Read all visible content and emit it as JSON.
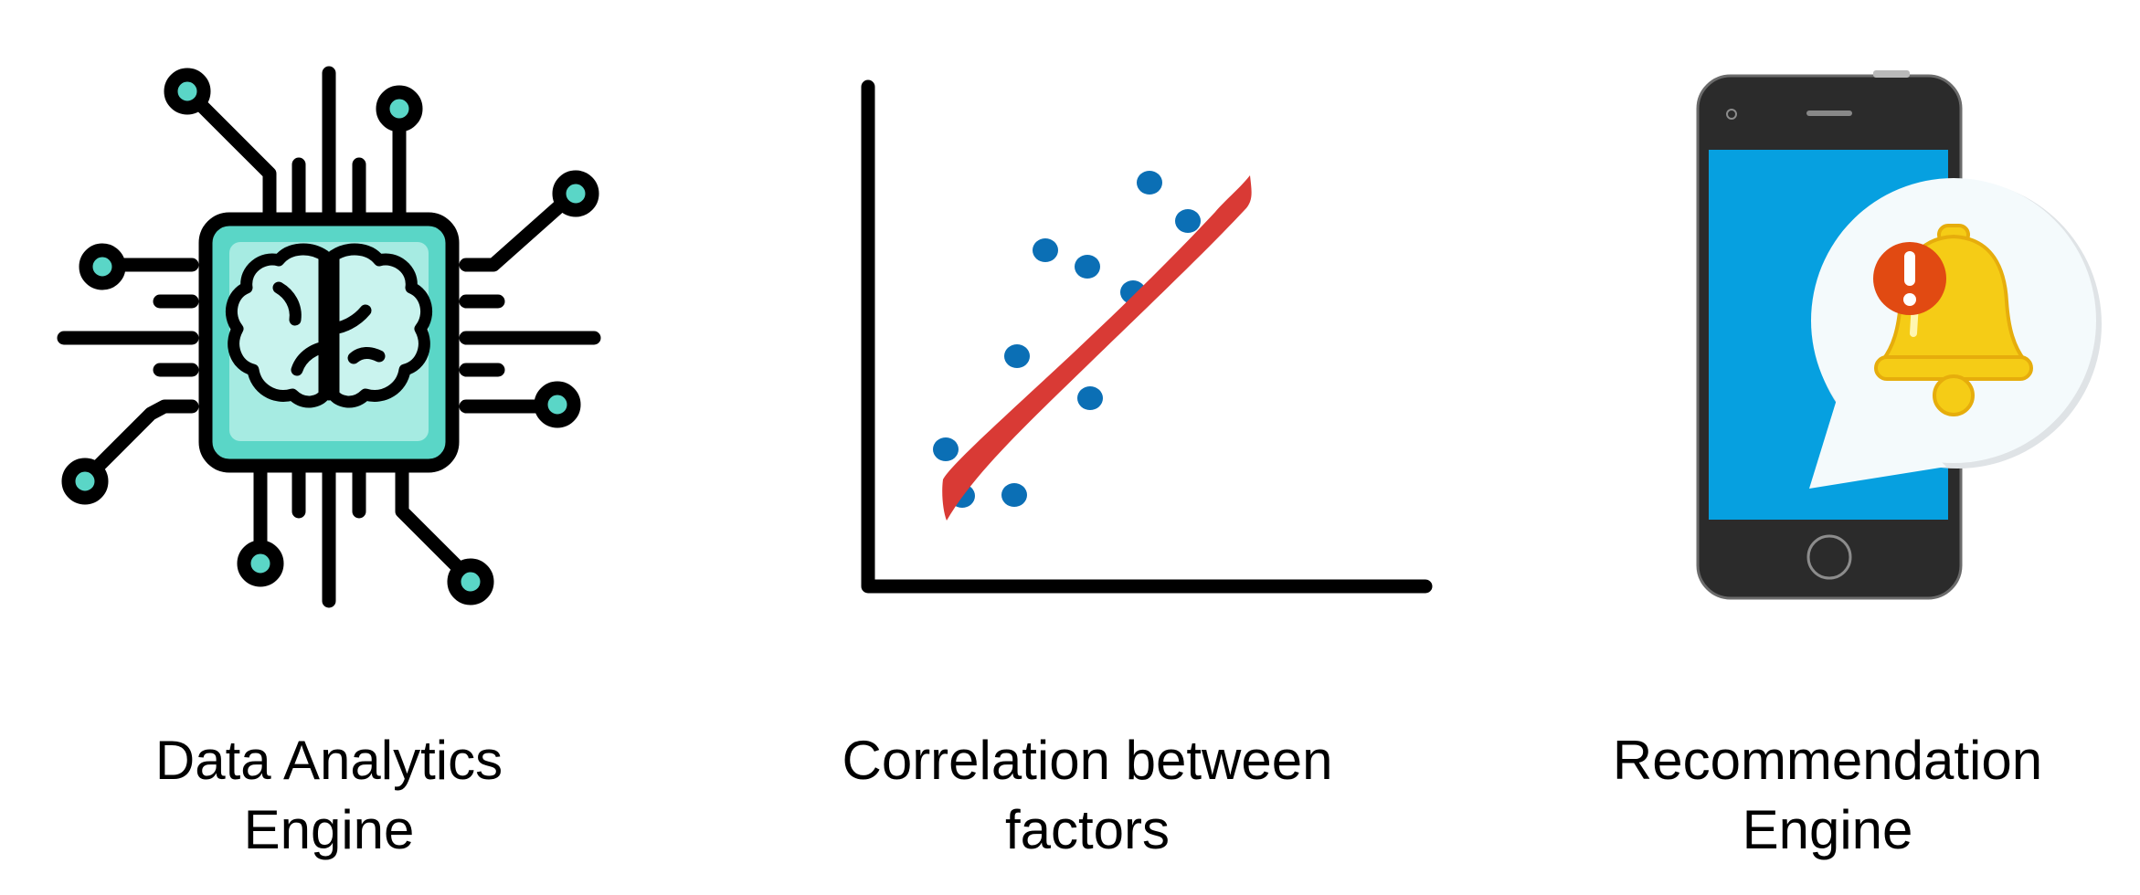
{
  "colors": {
    "stroke": "#000000",
    "teal": "#5ad6c7",
    "teal_light": "#a6ebe2",
    "brain_fill": "#c9f3ee",
    "trend_line": "#d93a35",
    "scatter_point": "#0b6fb5",
    "phone_body": "#2b2b2b",
    "phone_screen": "#06a0e0",
    "bubble": "#f4fafc",
    "bell": "#f5cc16",
    "alert": "#e14a12"
  },
  "icons": {
    "analytics": "brain-chip-icon",
    "correlation": "scatter-trend-icon",
    "recommendation": "phone-notification-bell-icon"
  },
  "panels": {
    "analytics": {
      "caption_line1": "Data Analytics",
      "caption_line2": "Engine"
    },
    "correlation": {
      "caption_line1": "Correlation between",
      "caption_line2": "factors"
    },
    "recommendation": {
      "caption_line1": "Recommendation",
      "caption_line2": "Engine"
    }
  },
  "alert_glyph": "!"
}
